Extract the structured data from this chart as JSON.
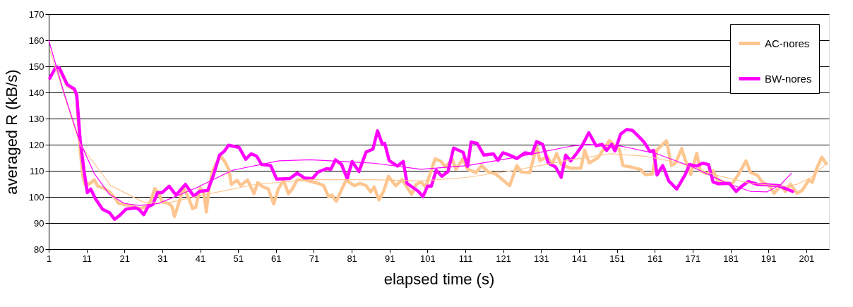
{
  "chart_data": {
    "type": "line",
    "xlabel": "elapsed time (s)",
    "ylabel": "averaged R (kB/s)",
    "xlim": [
      1,
      207
    ],
    "xticks": [
      1,
      11,
      21,
      31,
      41,
      51,
      61,
      71,
      81,
      91,
      101,
      111,
      121,
      131,
      141,
      151,
      161,
      171,
      181,
      191,
      201
    ],
    "ylim": [
      80,
      170
    ],
    "yticks": [
      80,
      90,
      100,
      110,
      120,
      130,
      140,
      150,
      160,
      170
    ],
    "grid": "y",
    "legend": "top right",
    "line_style": "solid",
    "marker": "none",
    "series": [
      {
        "name": "AC-nores",
        "color": "#fdc690",
        "x": [
          2.9,
          3.8,
          5.9,
          7.8,
          8.4,
          9.3,
          10,
          10.6,
          11.8,
          13,
          14,
          15.5,
          17,
          18.2,
          19.5,
          21.3,
          23.4,
          25,
          26.2,
          27.5,
          28.4,
          29,
          30,
          31,
          32.5,
          33.5,
          34.2,
          35.2,
          36.6,
          37.8,
          39,
          39.8,
          41,
          42,
          42.6,
          43.3,
          44.3,
          45.5,
          46.4,
          47.5,
          48.6,
          49.2,
          50.7,
          51.7,
          53.5,
          55.2,
          56.2,
          57.4,
          59,
          60.4,
          61.6,
          63,
          64.3,
          65.3,
          66.6,
          68.4,
          72.1,
          73.6,
          74.9,
          75.8,
          76.9,
          79.5,
          81.7,
          83.2,
          84.8,
          86,
          86.9,
          88.2,
          89.4,
          90.7,
          92.6,
          94.3,
          96.8,
          98,
          99.3,
          100.5,
          102,
          103,
          104.5,
          105.7,
          107.6,
          108.5,
          110.4,
          111.6,
          113.8,
          115.3,
          116.9,
          119,
          121.2,
          122.7,
          124.6,
          125.8,
          128,
          129.8,
          130.7,
          132.6,
          133.8,
          135.1,
          136.3,
          138.8,
          141.5,
          142.5,
          143.7,
          146,
          149,
          151.7,
          152.6,
          154.8,
          157.3,
          158.5,
          160.4,
          161.6,
          164.1,
          165.4,
          166.5,
          168.1,
          169,
          170.5,
          172.1,
          173,
          174.6,
          176.4,
          177.6,
          180.1,
          181.3,
          183.2,
          185.1,
          186.3,
          188.1,
          189.4,
          191.2,
          192.5,
          194.3,
          195.5,
          196.8,
          198.6,
          199.9,
          201.7,
          202.6,
          203.9,
          205.1,
          206.3
        ],
        "values": [
          149.5,
          149,
          142.7,
          141,
          138.5,
          118,
          108,
          104.6,
          105.1,
          106.5,
          104,
          103.4,
          102,
          100,
          97.5,
          97,
          96.3,
          95.5,
          96,
          97.2,
          100.5,
          103.2,
          101.5,
          98,
          97.6,
          96.5,
          92.5,
          97,
          103.5,
          100,
          95.5,
          96,
          103.5,
          101,
          94.2,
          103,
          110,
          113.5,
          115.6,
          113.5,
          110.3,
          104.8,
          106.3,
          104.4,
          106.5,
          101.2,
          105.5,
          104,
          103,
          97.3,
          103,
          106.3,
          101.2,
          103,
          106.5,
          106.6,
          105.2,
          104.3,
          100.1,
          100.7,
          98.3,
          106.4,
          104.3,
          105.2,
          104.3,
          101.9,
          103.8,
          98.9,
          102.1,
          107.9,
          104.3,
          106.6,
          101,
          104.8,
          105.7,
          103.8,
          110.1,
          114.6,
          113.7,
          111.5,
          114.2,
          110.6,
          114.6,
          110.6,
          109.3,
          112,
          109.7,
          108.8,
          106.1,
          104.3,
          112,
          109.5,
          109.3,
          119.2,
          113.8,
          115.6,
          112.4,
          116.6,
          112.4,
          111,
          111,
          117.8,
          113,
          115,
          121.5,
          118,
          112,
          111.4,
          110.5,
          108.5,
          108.8,
          118,
          121.5,
          112,
          113,
          118.5,
          114.4,
          108.6,
          116.7,
          110,
          109,
          110,
          106.5,
          105.2,
          104.8,
          108.8,
          113.8,
          109.3,
          108.3,
          105.7,
          104.3,
          101.4,
          104.3,
          102.1,
          104.8,
          101.4,
          102.5,
          106.5,
          105.6,
          111.4,
          115.2,
          112.7
        ]
      },
      {
        "name": "BW-nores",
        "color": "#ff00ff",
        "x": [
          1.3,
          2.9,
          3.8,
          5.9,
          7.8,
          8.4,
          9.3,
          10.3,
          11.2,
          12.1,
          13.3,
          15.2,
          17,
          18.4,
          19.8,
          21.4,
          23.8,
          24.8,
          26.1,
          27.2,
          28.5,
          29.7,
          30.9,
          32.8,
          34.6,
          37.1,
          39.3,
          40.8,
          43,
          44.5,
          46.1,
          47.3,
          48.5,
          51.3,
          53,
          54.4,
          55.9,
          57.2,
          59.6,
          61.2,
          64.6,
          66.6,
          68.6,
          70.6,
          72.1,
          74.3,
          75.5,
          76.7,
          78.3,
          79.8,
          81.1,
          82.9,
          84.8,
          86.6,
          87.8,
          89.1,
          89.7,
          90.9,
          93.1,
          94.6,
          95.6,
          98.6,
          99.8,
          101,
          102,
          103.3,
          104.8,
          106.4,
          107.9,
          110.4,
          111.6,
          112.5,
          114.1,
          115.9,
          118.4,
          119.6,
          120.9,
          122.7,
          124.6,
          126.7,
          128.6,
          129.8,
          131.4,
          132.9,
          134.8,
          136.3,
          137.5,
          138.8,
          140.3,
          141.8,
          143.6,
          145.5,
          147.1,
          148.3,
          149.6,
          150.5,
          152,
          153.6,
          155.1,
          156.7,
          158.2,
          159.7,
          160.7,
          161.6,
          163.1,
          164.7,
          166.8,
          169,
          170.2,
          172.1,
          173.6,
          175.2,
          176.4,
          177.9,
          180.7,
          182.5,
          183.8,
          185.7,
          188.1,
          190.9,
          193.7,
          195.5,
          197.4
        ],
        "values": [
          145.5,
          149.8,
          149.4,
          143,
          141.3,
          139,
          121.9,
          110.2,
          101.6,
          103,
          99.4,
          95.3,
          94,
          91.4,
          93,
          95.3,
          95.8,
          95.3,
          93.2,
          96.2,
          97.1,
          101.6,
          101.6,
          104.1,
          100.7,
          104.8,
          100.3,
          102.1,
          102.5,
          108.4,
          116,
          117.4,
          119.8,
          118.9,
          114.4,
          116.5,
          115.6,
          112.4,
          112,
          106.8,
          107,
          109.1,
          107.2,
          107,
          109.5,
          110.8,
          110.6,
          114.2,
          112.4,
          107,
          113.6,
          109.7,
          117.2,
          118.3,
          125.3,
          120.1,
          120.5,
          113.9,
          111.8,
          113.6,
          105.2,
          102.1,
          100.1,
          104.1,
          104.1,
          110.2,
          107.9,
          109.7,
          118.7,
          117.1,
          111.7,
          121,
          120.5,
          116,
          116.5,
          114,
          116.9,
          116,
          114.7,
          116.9,
          116.5,
          121.2,
          120.1,
          112.9,
          111.5,
          107.5,
          116,
          113.8,
          116.5,
          119.6,
          124.6,
          119.6,
          120.1,
          117.8,
          120.1,
          117.6,
          124.1,
          125.8,
          125.5,
          123.2,
          121,
          117.4,
          117.8,
          108.4,
          112,
          106.1,
          103,
          108.4,
          112.4,
          111.8,
          112.9,
          112.4,
          105.7,
          105,
          105.2,
          102.1,
          103.9,
          105.9,
          104.8,
          104.6,
          104.3,
          103.2,
          102.1
        ]
      },
      {
        "type": "line",
        "color": "#fdc690",
        "x": [
          1.3,
          9.3,
          17.4,
          26,
          32.2,
          43.3,
          55.6,
          70.4,
          86.9,
          99.3,
          111.6,
          124,
          138.8,
          149.2,
          158.5,
          167.8,
          177,
          186.3,
          194.9,
          198.6,
          202.3,
          206
        ],
        "values": [
          156.1,
          120,
          104.3,
          98,
          97.6,
          101.2,
          104.8,
          106.6,
          106.6,
          106.1,
          107.5,
          110.2,
          114.2,
          116.5,
          115.6,
          112.9,
          108.4,
          105.2,
          104.1,
          104.8,
          107.5,
          112.4
        ]
      },
      {
        "type": "line",
        "color": "#ff00ff",
        "x": [
          1,
          5,
          9,
          13,
          17,
          21,
          25,
          30,
          40,
          49.5,
          61.8,
          70,
          86.9,
          99.3,
          111.6,
          124,
          138.8,
          143.1,
          152.3,
          161.6,
          170.9,
          180.1,
          186.3,
          190.6,
          194.3,
          197.1
        ],
        "values": [
          160,
          140,
          122,
          109,
          101,
          97.5,
          96.7,
          97.5,
          103.5,
          110.2,
          113.8,
          114.2,
          112.9,
          110.6,
          112,
          115.1,
          119.4,
          120.1,
          119.4,
          116.5,
          111.5,
          105.2,
          102.1,
          101.9,
          104.8,
          109.1
        ]
      }
    ]
  }
}
